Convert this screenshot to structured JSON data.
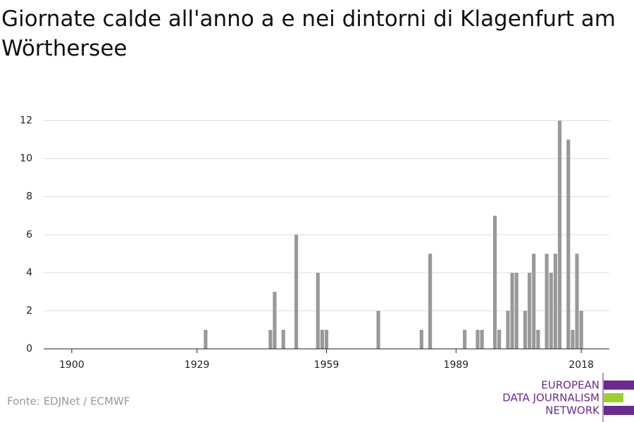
{
  "chart_data": {
    "type": "bar",
    "title": "Giornate calde all'anno a e nei dintorni di Klagenfurt am Wörthersee",
    "source": "Fonte: EDJNet / ECMWF",
    "logo": [
      "EUROPEAN",
      "DATA JOURNALISM",
      "NETWORK"
    ],
    "x": [
      1931,
      1946,
      1947,
      1949,
      1952,
      1957,
      1958,
      1959,
      1971,
      1981,
      1983,
      1991,
      1994,
      1995,
      1998,
      1999,
      2001,
      2002,
      2003,
      2005,
      2006,
      2007,
      2008,
      2010,
      2011,
      2012,
      2013,
      2015,
      2016,
      2017,
      2018
    ],
    "values": [
      1,
      1,
      3,
      1,
      6,
      4,
      1,
      1,
      2,
      1,
      5,
      1,
      1,
      1,
      7,
      1,
      2,
      4,
      4,
      2,
      4,
      5,
      1,
      5,
      4,
      5,
      12,
      11,
      1,
      5,
      2
    ],
    "color": "#999999",
    "xlim": [
      1893.5,
      2024.5
    ],
    "xticks": [
      1900,
      1929,
      1959,
      1989,
      2018
    ],
    "ylim": [
      0,
      12.5
    ],
    "yticks": [
      0,
      2,
      4,
      6,
      8,
      10,
      12
    ],
    "grid": true
  }
}
